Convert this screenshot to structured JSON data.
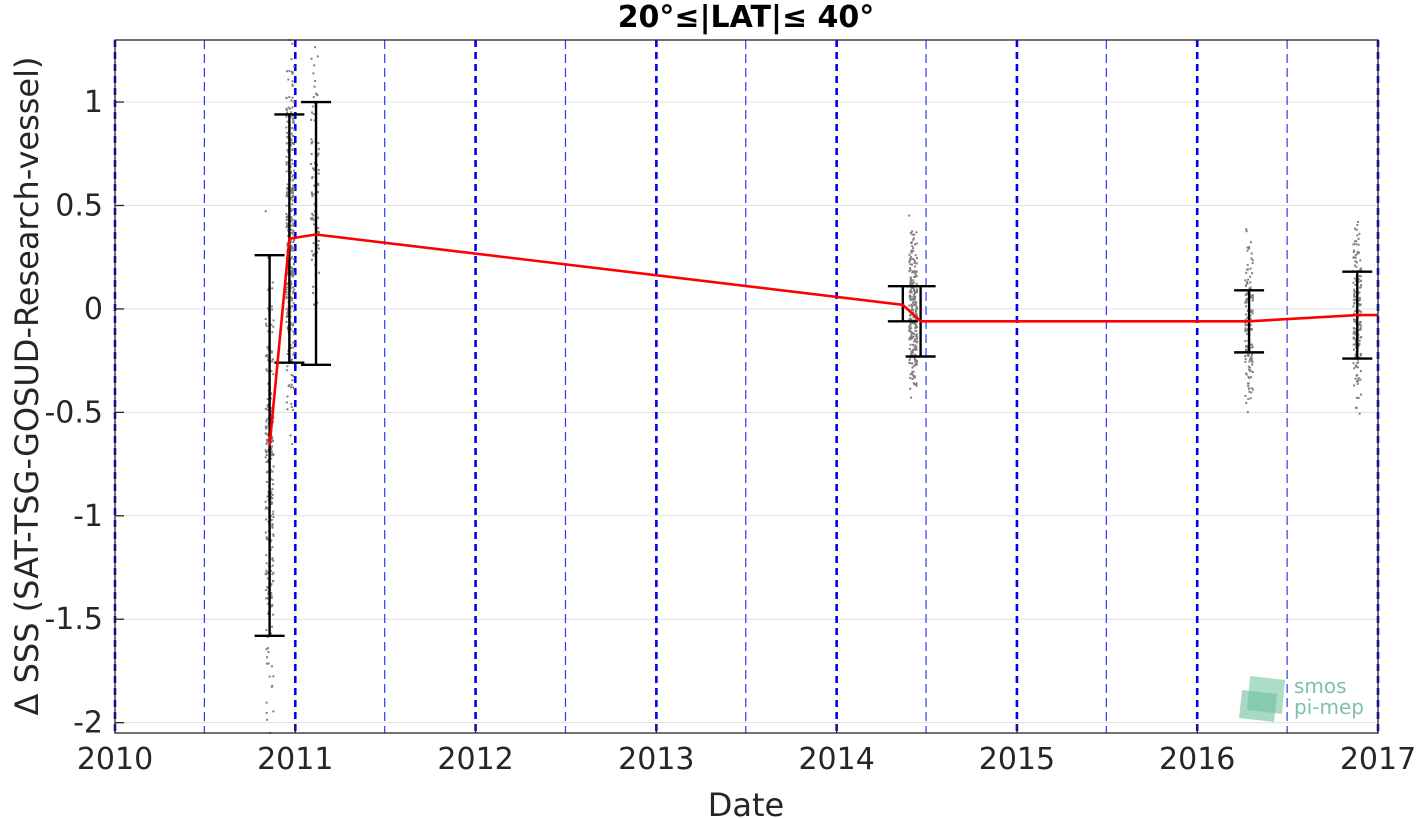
{
  "chart_data": {
    "type": "line",
    "title": "20°≤|LAT|≤ 40°",
    "xlabel": "Date",
    "ylabel": "Δ SSS (SAT-TSG-GOSUD-Research-vessel)",
    "xlim": [
      "2010-01-01",
      "2017-01-01"
    ],
    "ylim": [
      -2.05,
      1.3
    ],
    "x_ticks": [
      "2010",
      "2011",
      "2012",
      "2013",
      "2014",
      "2015",
      "2016",
      "2017"
    ],
    "y_ticks": [
      1,
      0.5,
      0,
      -0.5,
      -1,
      -1.5,
      -2
    ],
    "y_tick_labels": [
      "1",
      "0.5",
      "0",
      "-0.5",
      "-1",
      "-1.5",
      "-2"
    ],
    "grid": "horizontal",
    "year_lines": [
      "2010-01-01",
      "2011-01-01",
      "2012-01-01",
      "2013-01-01",
      "2014-01-01",
      "2015-01-01",
      "2016-01-01",
      "2017-01-01"
    ],
    "half_year_lines": [
      "2010-07-01",
      "2011-07-01",
      "2012-07-01",
      "2013-07-01",
      "2014-07-01",
      "2015-07-01",
      "2016-07-01"
    ],
    "series": [
      {
        "color": "#ff0000",
        "x": [
          "2010-11-10",
          "2010-12-20",
          "2011-02-12",
          "2014-05-15",
          "2014-06-20",
          "2016-04-15",
          "2016-11-20",
          "2017-01-01"
        ],
        "y": [
          -0.66,
          0.34,
          0.36,
          0.02,
          -0.06,
          -0.06,
          -0.03,
          -0.03
        ]
      }
    ],
    "error_bars": [
      {
        "x": "2010-11-10",
        "low": -1.58,
        "high": 0.26
      },
      {
        "x": "2010-12-20",
        "low": -0.26,
        "high": 0.94
      },
      {
        "x": "2011-02-12",
        "low": -0.27,
        "high": 1.0
      },
      {
        "x": "2014-05-15",
        "low": -0.06,
        "high": 0.11
      },
      {
        "x": "2014-06-20",
        "low": -0.23,
        "high": 0.11
      },
      {
        "x": "2016-04-15",
        "low": -0.21,
        "high": 0.09
      },
      {
        "x": "2016-11-20",
        "low": -0.24,
        "high": 0.18
      }
    ],
    "scatter_clusters": [
      {
        "x": "2010-11-10",
        "low": -2.0,
        "high": 0.3,
        "n": 260
      },
      {
        "x": "2010-12-22",
        "low": -0.6,
        "high": 1.3,
        "n": 320
      },
      {
        "x": "2011-02-10",
        "low": -0.3,
        "high": 1.3,
        "n": 90
      },
      {
        "x": "2014-06-05",
        "low": -0.47,
        "high": 0.43,
        "n": 240
      },
      {
        "x": "2016-04-15",
        "low": -0.49,
        "high": 0.37,
        "n": 160
      },
      {
        "x": "2016-11-20",
        "low": -0.57,
        "high": 0.52,
        "n": 180
      }
    ],
    "colors": {
      "line": "#ff0000",
      "error_bar": "#000000",
      "scatter": "#808080",
      "year_line": "#0000ee",
      "half_year_line": "#2a3cf0",
      "grid": "#e0e0e0"
    }
  },
  "logo": {
    "line1": "smos",
    "line2": "pi-mep"
  }
}
